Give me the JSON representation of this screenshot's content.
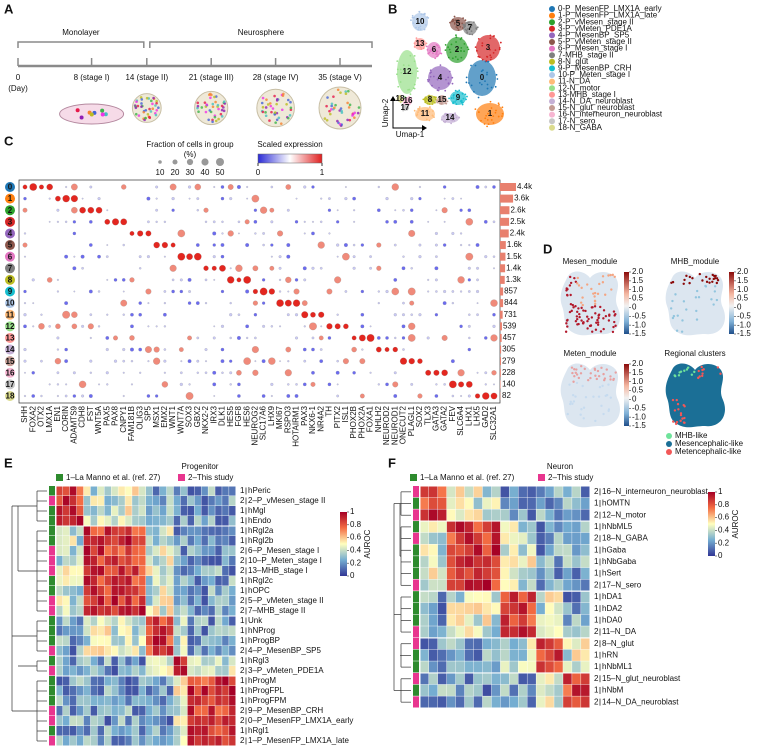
{
  "panel_labels": [
    "A",
    "B",
    "C",
    "D",
    "E",
    "F"
  ],
  "timeline": {
    "phases": [
      "Monolayer",
      "Neurosphere"
    ],
    "unit": "(Day)",
    "days": [
      0,
      {
        "value": 8,
        "label": "8 (stage I)"
      },
      {
        "value": 14,
        "label": "14 (stage II)"
      },
      {
        "value": 21,
        "label": "21 (stage III)"
      },
      {
        "value": 28,
        "label": "28 (stage IV)"
      },
      {
        "value": 35,
        "label": "35 (stage V)"
      }
    ]
  },
  "umap": {
    "x_label": "Umap-1",
    "y_label": "Umap-2",
    "clusters": [
      {
        "id": 0,
        "name": "0-P_MesenFP_LMX1A_early",
        "color": "#1f77b4"
      },
      {
        "id": 1,
        "name": "1-P_MesenFP_LMX1A_late",
        "color": "#ff7f0e"
      },
      {
        "id": 2,
        "name": "2-P_vMesen_stage II",
        "color": "#2ca02c"
      },
      {
        "id": 3,
        "name": "3-P_vMeten_PDE1A",
        "color": "#d62728"
      },
      {
        "id": 4,
        "name": "4-P_MesenBP_SP5",
        "color": "#9467bd"
      },
      {
        "id": 5,
        "name": "5-P_vMeten_stage II",
        "color": "#8c564b"
      },
      {
        "id": 6,
        "name": "6-P_Mesen_stage I",
        "color": "#e377c2"
      },
      {
        "id": 7,
        "name": "7-MHB_stage II",
        "color": "#7f7f7f"
      },
      {
        "id": 8,
        "name": "8-N_glut",
        "color": "#bcbd22"
      },
      {
        "id": 9,
        "name": "9-P_MesenBP_CRH",
        "color": "#17becf"
      },
      {
        "id": 10,
        "name": "10-P_Meten_stage I",
        "color": "#aec7e8"
      },
      {
        "id": 11,
        "name": "11-N_DA",
        "color": "#ffbb78"
      },
      {
        "id": 12,
        "name": "12-N_motor",
        "color": "#98df8a"
      },
      {
        "id": 13,
        "name": "13-MHB_stage I",
        "color": "#ff9896"
      },
      {
        "id": 14,
        "name": "14-N_DA_neuroblast",
        "color": "#c5b0d5"
      },
      {
        "id": 15,
        "name": "15-N_glut_neuroblast",
        "color": "#c49c94"
      },
      {
        "id": 16,
        "name": "16-N_interneuron_neuroblast",
        "color": "#f7b6d2"
      },
      {
        "id": 17,
        "name": "17-N_sero",
        "color": "#c7c7c7"
      },
      {
        "id": 18,
        "name": "18-N_GABA",
        "color": "#dbdb8d"
      }
    ]
  },
  "dotplot": {
    "size_legend_title": "Fraction of cells in group (%)",
    "size_ticks": [
      10,
      20,
      30,
      40,
      50
    ],
    "color_legend_title": "Scaled expression",
    "color_ticks": [
      0,
      1
    ],
    "bar_color": "#e8806e",
    "genes": [
      "SHH",
      "FOXA2",
      "OTX2",
      "LMX1A",
      "EN1",
      "CORIN",
      "ADAMTS9",
      "CDH8",
      "FST",
      "WNT5A",
      "PAX5",
      "PAX8",
      "CNPY1",
      "FAM181B",
      "OLIG3",
      "SP5",
      "MSX1",
      "EMX2",
      "WNT1",
      "WNT7A",
      "SOX3",
      "GBX2",
      "NKX2-2",
      "IRX3",
      "DLK1",
      "HES5",
      "FGF8",
      "HES6",
      "NEUROG2",
      "SLC17A6",
      "LHX9",
      "MKI67",
      "RSPO3",
      "HOTAIRM1",
      "PAX3",
      "NKX6-1",
      "NR4A2",
      "TH",
      "PITX2",
      "ISL1",
      "PHOX2B",
      "PHOX2A",
      "FOXA1",
      "NHLH2",
      "NEUROD2",
      "NEUROD1",
      "ONECUT2",
      "PLAGL1",
      "SOX2",
      "TLX3",
      "GATA3",
      "GATA2",
      "FEV",
      "SLC6A4",
      "LHX1",
      "LHX5",
      "GAD2",
      "SLC32A1"
    ],
    "cell_counts": [
      4400,
      3600,
      2600,
      2500,
      2400,
      1600,
      1500,
      1400,
      1300,
      857,
      844,
      731,
      539,
      457,
      305,
      279,
      228,
      140,
      82
    ],
    "cell_count_labels": [
      "4.4k",
      "3.6k",
      "2.6k",
      "2.5k",
      "2.4k",
      "1.6k",
      "1.5k",
      "1.4k",
      "1.3k",
      "857",
      "844",
      "731",
      "539",
      "457",
      "305",
      "279",
      "228",
      "140",
      "82"
    ]
  },
  "modules": {
    "panels": [
      "Mesen_module",
      "MHB_module",
      "Meten_module",
      "Regional clusters"
    ],
    "colorbar_ticks": [
      {
        "value": 2,
        "label": "2.0"
      },
      1.5,
      {
        "value": 1,
        "label": "1.0"
      },
      0.5,
      0,
      -0.5,
      {
        "value": -1,
        "label": "-1.0"
      },
      -1.5
    ],
    "regions": [
      {
        "name": "MHB-like",
        "color": "#6fe39b"
      },
      {
        "name": "Mesencephalic-like",
        "color": "#1b6f96"
      },
      {
        "name": "Metencephalic-like",
        "color": "#f25757"
      }
    ]
  },
  "progenitor": {
    "title": "Progenitor",
    "sources": [
      {
        "label": "1–La Manno et al. (ref. 27)",
        "color": "#2e8b2e"
      },
      {
        "label": "2–This study",
        "color": "#e8368f"
      }
    ],
    "rows": [
      {
        "source": 1,
        "name": "hPeric"
      },
      {
        "source": 2,
        "name": "2–P_vMesen_stage II"
      },
      {
        "source": 1,
        "name": "hMgl"
      },
      {
        "source": 1,
        "name": "hEndo"
      },
      {
        "source": 1,
        "name": "hRgl2a"
      },
      {
        "source": 1,
        "name": "hRgl2b"
      },
      {
        "source": 2,
        "name": "6–P_Mesen_stage I"
      },
      {
        "source": 2,
        "name": "10–P_Meten_stage I"
      },
      {
        "source": 2,
        "name": "13–MHB_stage I"
      },
      {
        "source": 1,
        "name": "hRgl2c"
      },
      {
        "source": 1,
        "name": "hOPC"
      },
      {
        "source": 2,
        "name": "5–P_vMeten_stage II"
      },
      {
        "source": 2,
        "name": "7–MHB_stage II"
      },
      {
        "source": 1,
        "name": "Unk"
      },
      {
        "source": 1,
        "name": "hNProg"
      },
      {
        "source": 1,
        "name": "hProgBP"
      },
      {
        "source": 2,
        "name": "4–P_MesenBP_SP5"
      },
      {
        "source": 1,
        "name": "hRgl3"
      },
      {
        "source": 2,
        "name": "3–P_vMeten_PDE1A"
      },
      {
        "source": 1,
        "name": "hProgM"
      },
      {
        "source": 1,
        "name": "hProgFPL"
      },
      {
        "source": 1,
        "name": "hProgFPM"
      },
      {
        "source": 2,
        "name": "9–P_MesenBP_CRH"
      },
      {
        "source": 2,
        "name": "0–P_MesenFP_LMX1A_early"
      },
      {
        "source": 1,
        "name": "hRgl1"
      },
      {
        "source": 2,
        "name": "1–P_MesenFP_LMX1A_late"
      }
    ],
    "colorbar_title": "AUROC",
    "colorbar_ticks": [
      1,
      0.8,
      0.6,
      0.4,
      0.2,
      0
    ]
  },
  "neuron": {
    "title": "Neuron",
    "sources": [
      {
        "label": "1–La Manno et al. (ref. 27)",
        "color": "#2e8b2e"
      },
      {
        "label": "2–This study",
        "color": "#e8368f"
      }
    ],
    "rows": [
      {
        "source": 2,
        "name": "16–N_interneuron_neuroblast"
      },
      {
        "source": 1,
        "name": "hOMTN"
      },
      {
        "source": 2,
        "name": "12–N_motor"
      },
      {
        "source": 1,
        "name": "hNbML5"
      },
      {
        "source": 2,
        "name": "18–N_GABA"
      },
      {
        "source": 1,
        "name": "hGaba"
      },
      {
        "source": 1,
        "name": "hNbGaba"
      },
      {
        "source": 1,
        "name": "hSert"
      },
      {
        "source": 2,
        "name": "17–N_sero"
      },
      {
        "source": 1,
        "name": "hDA1"
      },
      {
        "source": 1,
        "name": "hDA2"
      },
      {
        "source": 1,
        "name": "hDA0"
      },
      {
        "source": 2,
        "name": "11–N_DA"
      },
      {
        "source": 2,
        "name": "8–N_glut"
      },
      {
        "source": 1,
        "name": "hRN"
      },
      {
        "source": 1,
        "name": "hNbML1"
      },
      {
        "source": 2,
        "name": "15–N_glut_neuroblast"
      },
      {
        "source": 1,
        "name": "hNbM"
      },
      {
        "source": 2,
        "name": "14–N_DA_neuroblast"
      }
    ],
    "colorbar_title": "AUROC",
    "colorbar_ticks": [
      1,
      0.8,
      0.6,
      0.4,
      0.2,
      0
    ]
  }
}
